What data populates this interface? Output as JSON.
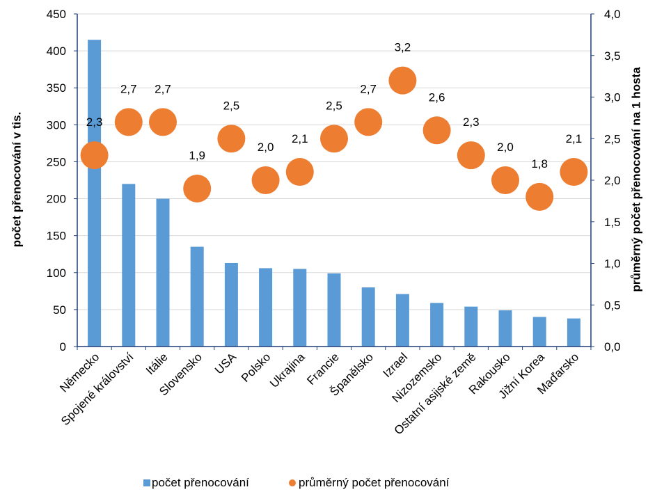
{
  "colors": {
    "bar": "#5b9bd5",
    "dot": "#ed7d31",
    "grid": "#d9d9d9",
    "axis": "#1f3d7a"
  },
  "chart_data": {
    "type": "bar",
    "categories": [
      "Německo",
      "Spojené království",
      "Itálie",
      "Slovensko",
      "USA",
      "Polsko",
      "Ukrajina",
      "Francie",
      "Španělsko",
      "Izrael",
      "Nizozemsko",
      "Ostatní asijské země",
      "Rakousko",
      "Jižní Korea",
      "Maďarsko"
    ],
    "series": [
      {
        "name": "počet přenocování",
        "type": "bar",
        "axis": "left",
        "values": [
          415,
          220,
          200,
          135,
          113,
          106,
          105,
          99,
          80,
          71,
          59,
          54,
          49,
          40,
          38
        ]
      },
      {
        "name": "průměrný počet přenocování",
        "type": "scatter",
        "axis": "right",
        "values": [
          2.3,
          2.7,
          2.7,
          1.9,
          2.5,
          2.0,
          2.1,
          2.5,
          2.7,
          3.2,
          2.6,
          2.3,
          2.0,
          1.8,
          2.1
        ],
        "labels": [
          "2,3",
          "2,7",
          "2,7",
          "1,9",
          "2,5",
          "2,0",
          "2,1",
          "2,5",
          "2,7",
          "3,2",
          "2,6",
          "2,3",
          "2,0",
          "1,8",
          "2,1"
        ]
      }
    ],
    "ylabel": "počet přenocování v tis.",
    "y2label": "průměrný počet přenocování na 1 hosta",
    "ylim": [
      0,
      450
    ],
    "y2lim": [
      0,
      4
    ],
    "yticks": [
      "0",
      "50",
      "100",
      "150",
      "200",
      "250",
      "300",
      "350",
      "400",
      "450"
    ],
    "y2ticks": [
      "0,0",
      "0,5",
      "1,0",
      "1,5",
      "2,0",
      "2,5",
      "3,0",
      "3,5",
      "4,0"
    ],
    "grid": true,
    "legend": "bottom"
  }
}
